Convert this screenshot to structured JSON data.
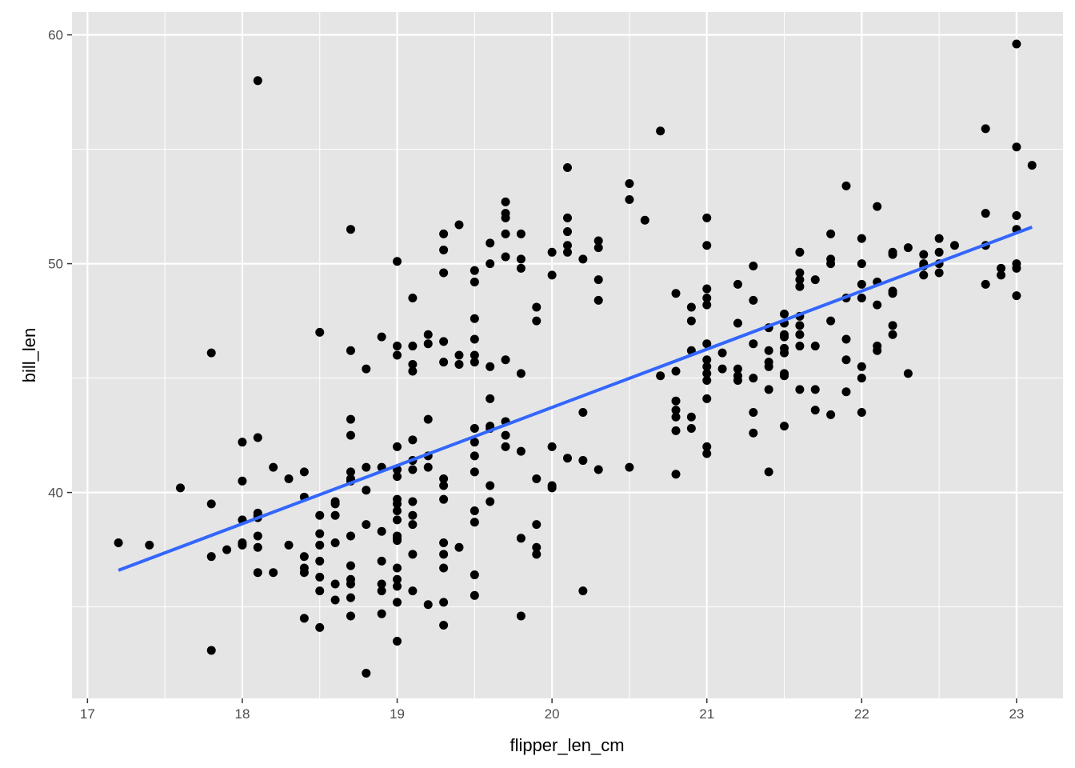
{
  "chart_data": {
    "type": "scatter",
    "xlabel": "flipper_len_cm",
    "ylabel": "bill_len",
    "x_ticks": [
      17,
      18,
      19,
      20,
      21,
      22,
      23
    ],
    "y_ticks": [
      40,
      50,
      60
    ],
    "xlim": [
      16.9,
      23.3
    ],
    "ylim": [
      31.0,
      61.0
    ],
    "grid": true,
    "legend": "none",
    "colors": {
      "panel": "#E5E5E5",
      "grid": "#FFFFFF",
      "points": "#000000",
      "trend": "#3366FF"
    },
    "trend_line": {
      "x": [
        17.2,
        23.1
      ],
      "y": [
        36.6,
        51.6
      ]
    },
    "x": [
      17.2,
      17.4,
      17.6,
      17.8,
      17.8,
      17.8,
      17.8,
      17.9,
      18.0,
      18.0,
      18.0,
      18.0,
      18.0,
      18.1,
      18.1,
      18.1,
      18.1,
      18.1,
      18.1,
      18.1,
      18.1,
      18.2,
      18.2,
      18.3,
      18.3,
      18.4,
      18.4,
      18.4,
      18.4,
      18.4,
      18.4,
      18.5,
      18.5,
      18.5,
      18.5,
      18.5,
      18.5,
      18.5,
      18.5,
      18.6,
      18.6,
      18.6,
      18.6,
      18.6,
      18.6,
      18.7,
      18.7,
      18.7,
      18.7,
      18.7,
      18.7,
      18.7,
      18.7,
      18.7,
      18.7,
      18.7,
      18.7,
      18.7,
      18.8,
      18.8,
      18.8,
      18.8,
      18.8,
      18.9,
      18.9,
      18.9,
      18.9,
      18.9,
      18.9,
      18.9,
      19.0,
      19.0,
      19.0,
      19.0,
      19.0,
      19.0,
      19.0,
      19.0,
      19.0,
      19.0,
      19.0,
      19.0,
      19.0,
      19.0,
      19.0,
      19.0,
      19.0,
      19.0,
      19.1,
      19.1,
      19.1,
      19.1,
      19.1,
      19.1,
      19.1,
      19.1,
      19.1,
      19.1,
      19.1,
      19.1,
      19.2,
      19.2,
      19.2,
      19.2,
      19.2,
      19.2,
      19.3,
      19.3,
      19.3,
      19.3,
      19.3,
      19.3,
      19.3,
      19.3,
      19.3,
      19.3,
      19.3,
      19.3,
      19.3,
      19.4,
      19.4,
      19.4,
      19.4,
      19.5,
      19.5,
      19.5,
      19.5,
      19.5,
      19.5,
      19.5,
      19.5,
      19.5,
      19.5,
      19.5,
      19.5,
      19.5,
      19.5,
      19.6,
      19.6,
      19.6,
      19.6,
      19.6,
      19.6,
      19.6,
      19.6,
      19.7,
      19.7,
      19.7,
      19.7,
      19.7,
      19.7,
      19.7,
      19.7,
      19.7,
      19.8,
      19.8,
      19.8,
      19.8,
      19.8,
      19.8,
      19.8,
      19.9,
      19.9,
      19.9,
      19.9,
      19.9,
      19.9,
      20.0,
      20.0,
      20.0,
      20.0,
      20.0,
      20.1,
      20.1,
      20.1,
      20.1,
      20.1,
      20.1,
      20.2,
      20.2,
      20.2,
      20.2,
      20.3,
      20.3,
      20.3,
      20.3,
      20.3,
      20.5,
      20.5,
      20.5,
      20.6,
      20.7,
      20.7,
      20.8,
      20.8,
      20.8,
      20.8,
      20.8,
      20.8,
      20.8,
      20.9,
      20.9,
      20.9,
      20.9,
      20.9,
      21.0,
      21.0,
      21.0,
      21.0,
      21.0,
      21.0,
      21.0,
      21.0,
      21.0,
      21.0,
      21.0,
      21.0,
      21.0,
      21.1,
      21.1,
      21.2,
      21.2,
      21.2,
      21.2,
      21.2,
      21.3,
      21.3,
      21.3,
      21.3,
      21.3,
      21.3,
      21.4,
      21.4,
      21.4,
      21.4,
      21.4,
      21.4,
      21.5,
      21.5,
      21.5,
      21.5,
      21.5,
      21.5,
      21.5,
      21.5,
      21.5,
      21.6,
      21.6,
      21.6,
      21.6,
      21.6,
      21.6,
      21.6,
      21.6,
      21.6,
      21.7,
      21.7,
      21.7,
      21.7,
      21.8,
      21.8,
      21.8,
      21.8,
      21.8,
      21.9,
      21.9,
      21.9,
      21.9,
      21.9,
      22.0,
      22.0,
      22.0,
      22.0,
      22.0,
      22.0,
      22.0,
      22.1,
      22.1,
      22.1,
      22.1,
      22.1,
      22.2,
      22.2,
      22.2,
      22.2,
      22.2,
      22.2,
      22.3,
      22.3,
      22.4,
      22.4,
      22.4,
      22.4,
      22.5,
      22.5,
      22.5,
      22.5,
      22.6,
      22.8,
      22.8,
      22.8,
      22.8,
      22.9,
      22.9,
      23.0,
      23.0,
      23.0,
      23.0,
      23.0,
      23.0,
      23.0,
      23.1
    ],
    "y": [
      37.8,
      37.7,
      40.2,
      46.1,
      39.5,
      37.2,
      33.1,
      37.5,
      42.2,
      40.5,
      38.8,
      37.8,
      37.7,
      58.0,
      42.4,
      39.1,
      38.9,
      38.1,
      37.6,
      36.5,
      39.0,
      41.1,
      36.5,
      40.6,
      37.7,
      40.9,
      39.8,
      37.2,
      36.5,
      34.5,
      36.7,
      47.0,
      39.0,
      38.2,
      37.7,
      37.0,
      36.3,
      35.7,
      34.1,
      39.6,
      39.5,
      39.0,
      37.8,
      36.0,
      35.3,
      51.5,
      46.2,
      43.2,
      42.5,
      40.9,
      40.6,
      38.1,
      36.8,
      36.2,
      36.0,
      35.4,
      34.6,
      40.5,
      45.4,
      41.1,
      40.1,
      38.6,
      32.1,
      46.8,
      41.1,
      38.3,
      37.0,
      36.0,
      35.7,
      34.7,
      50.1,
      46.4,
      46.0,
      42.0,
      41.0,
      40.7,
      39.7,
      39.2,
      38.8,
      38.1,
      37.9,
      36.2,
      35.9,
      35.2,
      33.5,
      38.0,
      39.5,
      36.7,
      48.5,
      46.4,
      45.6,
      45.3,
      42.3,
      41.4,
      41.0,
      39.6,
      39.0,
      38.6,
      37.3,
      35.7,
      46.9,
      46.5,
      43.2,
      41.6,
      41.1,
      35.1,
      51.3,
      50.6,
      49.6,
      46.6,
      45.7,
      40.6,
      40.3,
      39.7,
      37.8,
      37.3,
      36.7,
      35.2,
      34.2,
      51.7,
      46.0,
      45.6,
      37.6,
      49.7,
      49.2,
      47.6,
      46.7,
      46.0,
      45.7,
      42.8,
      42.2,
      41.6,
      40.9,
      39.2,
      38.7,
      36.4,
      35.5,
      50.9,
      50.0,
      45.5,
      44.1,
      42.9,
      42.8,
      40.3,
      39.6,
      52.7,
      52.2,
      52.0,
      51.3,
      50.3,
      45.8,
      43.1,
      42.5,
      42.0,
      51.3,
      50.2,
      49.8,
      45.2,
      41.8,
      38.0,
      34.6,
      48.1,
      47.5,
      40.6,
      38.6,
      37.6,
      37.3,
      50.5,
      49.5,
      42.0,
      40.2,
      40.3,
      54.2,
      52.0,
      51.4,
      50.8,
      50.5,
      41.5,
      50.2,
      43.5,
      41.4,
      35.7,
      51.0,
      50.7,
      49.3,
      48.4,
      41.0,
      53.5,
      52.8,
      41.1,
      51.9,
      55.8,
      45.1,
      48.7,
      45.3,
      44.0,
      43.6,
      43.3,
      42.7,
      40.8,
      48.1,
      47.5,
      46.2,
      43.3,
      42.8,
      52.0,
      50.8,
      48.9,
      48.5,
      48.2,
      46.5,
      45.8,
      45.5,
      45.2,
      44.9,
      44.1,
      42.0,
      41.7,
      46.1,
      45.4,
      49.1,
      47.4,
      45.4,
      45.1,
      44.9,
      49.9,
      48.4,
      46.5,
      45.0,
      43.5,
      42.6,
      47.2,
      46.2,
      45.7,
      45.5,
      44.5,
      40.9,
      47.8,
      47.4,
      46.9,
      46.8,
      46.3,
      46.1,
      45.2,
      45.1,
      42.9,
      50.5,
      49.6,
      49.3,
      49.0,
      47.7,
      47.3,
      46.4,
      44.5,
      46.9,
      49.3,
      46.4,
      44.5,
      43.6,
      51.3,
      50.2,
      50.0,
      47.5,
      43.4,
      53.4,
      48.5,
      46.7,
      45.8,
      44.4,
      51.1,
      50.0,
      49.1,
      48.5,
      45.5,
      45.0,
      43.5,
      52.5,
      49.2,
      48.2,
      46.4,
      46.2,
      50.5,
      50.4,
      48.8,
      48.7,
      47.3,
      46.9,
      50.7,
      45.2,
      50.4,
      49.9,
      50.0,
      49.5,
      51.1,
      50.5,
      50.0,
      49.6,
      50.8,
      55.9,
      52.2,
      50.8,
      49.1,
      49.8,
      49.5,
      59.6,
      55.1,
      52.1,
      51.5,
      50.0,
      49.8,
      48.6,
      54.3
    ]
  }
}
